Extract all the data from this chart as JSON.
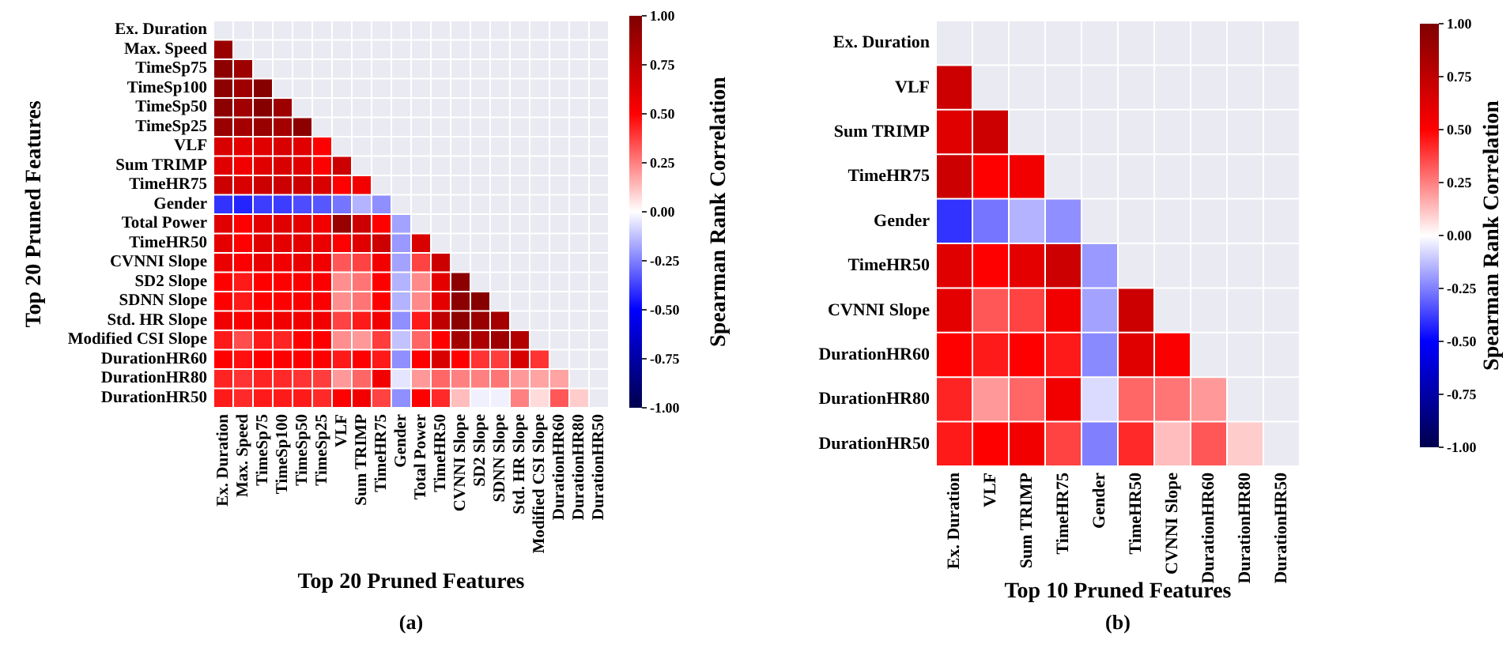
{
  "chart_data": [
    {
      "type": "heatmap",
      "xlabel": "Top 20 Pruned Features",
      "ylabel": "Top 20 Pruned Features",
      "clabel": "Spearman Rank Correlation",
      "annotations": [
        "(a)"
      ],
      "categories": [
        "Ex. Duration",
        "Max. Speed",
        "TimeSp75",
        "TimeSp100",
        "TimeSp50",
        "TimeSp25",
        "VLF",
        "Sum TRIMP",
        "TimeHR75",
        "Gender",
        "Total Power",
        "TimeHR50",
        "CVNNI Slope",
        "SD2 Slope",
        "SDNN Slope",
        "Std. HR Slope",
        "Modified CSI Slope",
        "DurationHR60",
        "DurationHR80",
        "DurationHR50"
      ],
      "y_categories": [
        "Ex. Duration",
        "Max. Speed",
        "TimeSp75",
        "TimeSp100",
        "TimeSp50",
        "TimeSp25",
        "VLF",
        "Sum TRIMP",
        "TimeHR75",
        "Gender",
        "Total Power",
        "TimeHR50",
        "CVNNI Slope",
        "SD2 Slope",
        "SDNN Slope",
        "Std. HR Slope",
        "Modified CSI Slope",
        "DurationHR60",
        "DurationHR80",
        "DurationHR50"
      ],
      "cells": [
        [
          null,
          null,
          null,
          null,
          null,
          null,
          null,
          null,
          null,
          null,
          null,
          null,
          null,
          null,
          null,
          null,
          null,
          null,
          null,
          null
        ],
        [
          0.9,
          null,
          null,
          null,
          null,
          null,
          null,
          null,
          null,
          null,
          null,
          null,
          null,
          null,
          null,
          null,
          null,
          null,
          null,
          null
        ],
        [
          0.95,
          0.88,
          null,
          null,
          null,
          null,
          null,
          null,
          null,
          null,
          null,
          null,
          null,
          null,
          null,
          null,
          null,
          null,
          null,
          null
        ],
        [
          0.95,
          0.88,
          0.97,
          null,
          null,
          null,
          null,
          null,
          null,
          null,
          null,
          null,
          null,
          null,
          null,
          null,
          null,
          null,
          null,
          null
        ],
        [
          0.95,
          0.87,
          0.97,
          0.88,
          null,
          null,
          null,
          null,
          null,
          null,
          null,
          null,
          null,
          null,
          null,
          null,
          null,
          null,
          null,
          null
        ],
        [
          0.9,
          0.85,
          0.9,
          0.85,
          0.95,
          null,
          null,
          null,
          null,
          null,
          null,
          null,
          null,
          null,
          null,
          null,
          null,
          null,
          null,
          null
        ],
        [
          0.65,
          0.6,
          0.62,
          0.65,
          0.62,
          0.5,
          null,
          null,
          null,
          null,
          null,
          null,
          null,
          null,
          null,
          null,
          null,
          null,
          null,
          null
        ],
        [
          0.62,
          0.55,
          0.62,
          0.65,
          0.62,
          0.5,
          0.7,
          null,
          null,
          null,
          null,
          null,
          null,
          null,
          null,
          null,
          null,
          null,
          null,
          null
        ],
        [
          0.7,
          0.65,
          0.7,
          0.7,
          0.7,
          0.65,
          0.5,
          0.55,
          null,
          null,
          null,
          null,
          null,
          null,
          null,
          null,
          null,
          null,
          null,
          null
        ],
        [
          -0.4,
          -0.43,
          -0.38,
          -0.38,
          -0.35,
          -0.33,
          -0.27,
          -0.15,
          -0.22,
          null,
          null,
          null,
          null,
          null,
          null,
          null,
          null,
          null,
          null,
          null
        ],
        [
          0.62,
          0.5,
          0.6,
          0.62,
          0.6,
          0.55,
          0.9,
          0.7,
          0.5,
          -0.18,
          null,
          null,
          null,
          null,
          null,
          null,
          null,
          null,
          null,
          null
        ],
        [
          0.6,
          0.5,
          0.62,
          0.6,
          0.6,
          0.58,
          0.5,
          0.62,
          0.7,
          -0.2,
          0.65,
          null,
          null,
          null,
          null,
          null,
          null,
          null,
          null,
          null
        ],
        [
          0.58,
          0.52,
          0.58,
          0.55,
          0.58,
          0.55,
          0.33,
          0.37,
          0.55,
          -0.18,
          0.37,
          0.7,
          null,
          null,
          null,
          null,
          null,
          null,
          null,
          null
        ],
        [
          0.5,
          0.45,
          0.5,
          0.5,
          0.52,
          0.52,
          0.22,
          0.27,
          0.5,
          -0.15,
          0.23,
          0.6,
          0.95,
          null,
          null,
          null,
          null,
          null,
          null,
          null
        ],
        [
          0.5,
          0.45,
          0.5,
          0.5,
          0.52,
          0.52,
          0.22,
          0.27,
          0.5,
          -0.15,
          0.23,
          0.6,
          0.95,
          0.97,
          null,
          null,
          null,
          null,
          null,
          null
        ],
        [
          0.55,
          0.52,
          0.55,
          0.55,
          0.55,
          0.55,
          0.37,
          0.45,
          0.55,
          -0.22,
          0.45,
          0.75,
          0.95,
          0.9,
          0.85,
          null,
          null,
          null,
          null,
          null
        ],
        [
          0.45,
          0.35,
          0.45,
          0.43,
          0.5,
          0.5,
          0.22,
          0.2,
          0.38,
          -0.12,
          0.3,
          0.5,
          0.85,
          0.82,
          0.88,
          0.8,
          null,
          null,
          null,
          null
        ],
        [
          0.5,
          0.47,
          0.5,
          0.5,
          0.5,
          0.5,
          0.45,
          0.5,
          0.45,
          -0.22,
          0.5,
          0.65,
          0.5,
          0.4,
          0.38,
          0.65,
          0.4,
          null,
          null,
          null
        ],
        [
          0.43,
          0.4,
          0.43,
          0.42,
          0.4,
          0.38,
          0.2,
          0.3,
          0.55,
          -0.05,
          0.2,
          0.3,
          0.25,
          0.25,
          0.27,
          0.2,
          0.18,
          0.18,
          null,
          null
        ],
        [
          0.45,
          0.42,
          0.45,
          0.45,
          0.45,
          0.42,
          0.5,
          0.55,
          0.37,
          -0.22,
          0.5,
          0.42,
          0.13,
          -0.03,
          -0.03,
          0.25,
          0.07,
          0.33,
          0.1,
          null
        ]
      ],
      "clim": [
        -1,
        1
      ],
      "cticks": [
        {
          "value": -1,
          "label": "-1.00"
        },
        {
          "value": -0.75,
          "label": "-0.75"
        },
        {
          "value": -0.5,
          "label": "-0.50"
        },
        {
          "value": -0.25,
          "label": "-0.25"
        },
        {
          "value": 0,
          "label": "0.00"
        },
        {
          "value": 0.25,
          "label": "0.25"
        },
        {
          "value": 0.5,
          "label": "0.50"
        },
        {
          "value": 0.75,
          "label": "0.75"
        },
        {
          "value": 1,
          "label": "1.00"
        }
      ]
    },
    {
      "type": "heatmap",
      "xlabel": "Top 10 Pruned Features",
      "clabel": "Spearman Rank Correlation",
      "annotations": [
        "(b)"
      ],
      "categories": [
        "Ex. Duration",
        "VLF",
        "Sum TRIMP",
        "TimeHR75",
        "Gender",
        "TimeHR50",
        "CVNNI Slope",
        "DurationHR60",
        "DurationHR80",
        "DurationHR50"
      ],
      "y_categories": [
        "Ex. Duration",
        "VLF",
        "Sum TRIMP",
        "TimeHR75",
        "Gender",
        "TimeHR50",
        "CVNNI Slope",
        "DurationHR60",
        "DurationHR80",
        "DurationHR50"
      ],
      "cells": [
        [
          null,
          null,
          null,
          null,
          null,
          null,
          null,
          null,
          null,
          null
        ],
        [
          0.7,
          null,
          null,
          null,
          null,
          null,
          null,
          null,
          null,
          null
        ],
        [
          0.62,
          0.7,
          null,
          null,
          null,
          null,
          null,
          null,
          null,
          null
        ],
        [
          0.7,
          0.5,
          0.55,
          null,
          null,
          null,
          null,
          null,
          null,
          null
        ],
        [
          -0.4,
          -0.27,
          -0.15,
          -0.22,
          null,
          null,
          null,
          null,
          null,
          null
        ],
        [
          0.62,
          0.5,
          0.6,
          0.7,
          -0.2,
          null,
          null,
          null,
          null,
          null
        ],
        [
          0.6,
          0.33,
          0.37,
          0.55,
          -0.18,
          0.7,
          null,
          null,
          null,
          null
        ],
        [
          0.5,
          0.45,
          0.5,
          0.45,
          -0.23,
          0.62,
          0.52,
          null,
          null,
          null
        ],
        [
          0.43,
          0.2,
          0.3,
          0.55,
          -0.07,
          0.3,
          0.27,
          0.2,
          null,
          null
        ],
        [
          0.45,
          0.5,
          0.55,
          0.37,
          -0.25,
          0.42,
          0.13,
          0.33,
          0.1,
          null
        ]
      ],
      "clim": [
        -1,
        1
      ],
      "cticks": [
        {
          "value": -1,
          "label": "-1.00"
        },
        {
          "value": -0.75,
          "label": "-0.75"
        },
        {
          "value": -0.5,
          "label": "-0.50"
        },
        {
          "value": -0.25,
          "label": "-0.25"
        },
        {
          "value": 0,
          "label": "0.00"
        },
        {
          "value": 0.25,
          "label": "0.25"
        },
        {
          "value": 0.5,
          "label": "0.50"
        },
        {
          "value": 0.75,
          "label": "0.75"
        },
        {
          "value": 1,
          "label": "1.00"
        }
      ]
    }
  ]
}
